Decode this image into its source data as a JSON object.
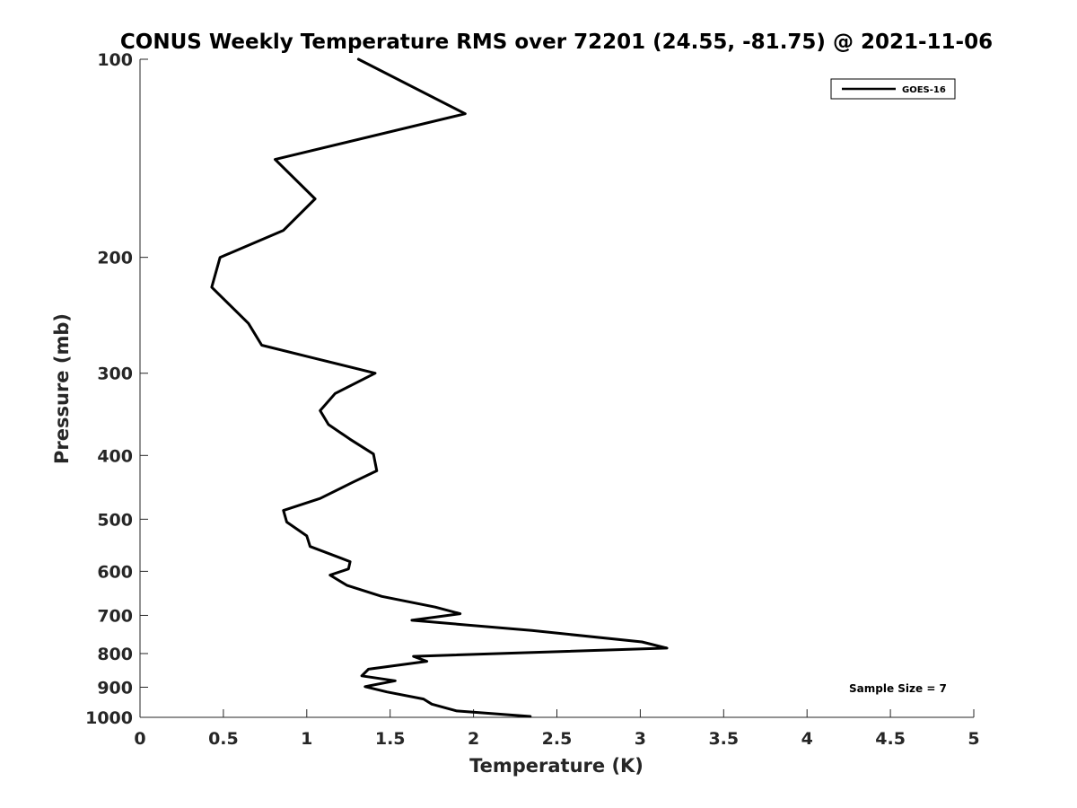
{
  "chart_data": {
    "type": "line",
    "title": "CONUS Weekly Temperature RMS over 72201 (24.55, -81.75) @ 2021-11-06",
    "xlabel": "Temperature (K)",
    "ylabel": "Pressure (mb)",
    "xlim": [
      0,
      5
    ],
    "ylim": [
      100,
      1000
    ],
    "y_scale": "log",
    "y_reversed": true,
    "x_ticks": [
      "0",
      "0.5",
      "1",
      "1.5",
      "2",
      "2.5",
      "3",
      "3.5",
      "4",
      "4.5",
      "5"
    ],
    "x_tick_values": [
      0,
      0.5,
      1,
      1.5,
      2,
      2.5,
      3,
      3.5,
      4,
      4.5,
      5
    ],
    "y_ticks": [
      "100",
      "200",
      "300",
      "400",
      "500",
      "600",
      "700",
      "800",
      "900",
      "1000"
    ],
    "y_tick_values": [
      100,
      200,
      300,
      400,
      500,
      600,
      700,
      800,
      900,
      1000
    ],
    "grid": false,
    "legend_position": "top-right",
    "annotation": "Sample Size = 7",
    "series": [
      {
        "name": "GOES-16",
        "color": "#000000",
        "x": [
          1.31,
          1.95,
          0.81,
          1.05,
          0.86,
          0.48,
          0.43,
          0.65,
          0.73,
          1.03,
          1.41,
          1.17,
          1.08,
          1.13,
          1.26,
          1.4,
          1.42,
          1.27,
          1.08,
          0.86,
          0.88,
          1.0,
          1.02,
          1.26,
          1.25,
          1.14,
          1.24,
          1.45,
          1.77,
          1.92,
          1.63,
          2.35,
          3.01,
          3.16,
          1.64,
          1.72,
          1.37,
          1.33,
          1.53,
          1.35,
          1.48,
          1.7,
          1.75,
          1.9,
          2.34
        ],
        "y": [
          100,
          121,
          142,
          163,
          182,
          200,
          222,
          252,
          272,
          284,
          300,
          322,
          342,
          359,
          378,
          398,
          422,
          440,
          465,
          485,
          505,
          530,
          550,
          580,
          595,
          608,
          630,
          655,
          680,
          696,
          712,
          738,
          768,
          785,
          808,
          822,
          845,
          865,
          880,
          898,
          915,
          938,
          955,
          978,
          997
        ]
      }
    ]
  }
}
